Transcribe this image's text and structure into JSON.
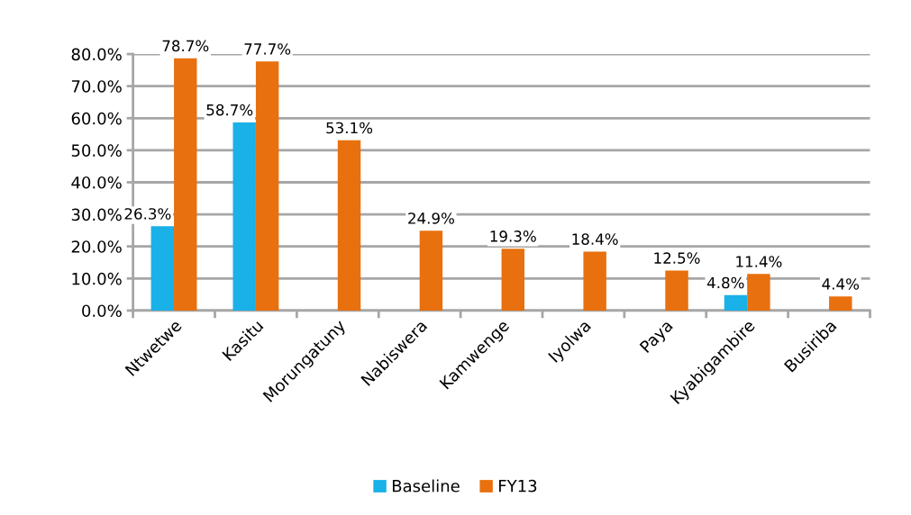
{
  "chart_data": {
    "type": "bar",
    "categories": [
      "Ntwetwe",
      "Kasitu",
      "Morungatuny",
      "Nabiswera",
      "Kamwenge",
      "Iyolwa",
      "Paya",
      "Kyabigambire",
      "Busiriba"
    ],
    "series": [
      {
        "name": "Baseline",
        "color": "#1ab0e8",
        "values": [
          26.3,
          58.7,
          null,
          null,
          null,
          null,
          null,
          4.8,
          null
        ],
        "value_labels": [
          "26.3%",
          "58.7%",
          null,
          null,
          null,
          null,
          null,
          "4.8%",
          null
        ]
      },
      {
        "name": "FY13",
        "color": "#e8700e",
        "values": [
          78.7,
          77.7,
          53.1,
          24.9,
          19.3,
          18.4,
          12.5,
          11.4,
          4.4
        ],
        "value_labels": [
          "78.7%",
          "77.7%",
          "53.1%",
          "24.9%",
          "19.3%",
          "18.4%",
          "12.5%",
          "11.4%",
          "4.4%"
        ]
      }
    ],
    "ylim": [
      0,
      80
    ],
    "yticks": [
      {
        "value": 0,
        "label": "0.0%"
      },
      {
        "value": 10,
        "label": "10.0%"
      },
      {
        "value": 20,
        "label": "20.0%"
      },
      {
        "value": 30,
        "label": "30.0%"
      },
      {
        "value": 40,
        "label": "40.0%"
      },
      {
        "value": 50,
        "label": "50.0%"
      },
      {
        "value": 60,
        "label": "60.0%"
      },
      {
        "value": 70,
        "label": "70.0%"
      },
      {
        "value": 80,
        "label": "80.0%"
      }
    ],
    "grid": "y",
    "legend": "bottom"
  }
}
